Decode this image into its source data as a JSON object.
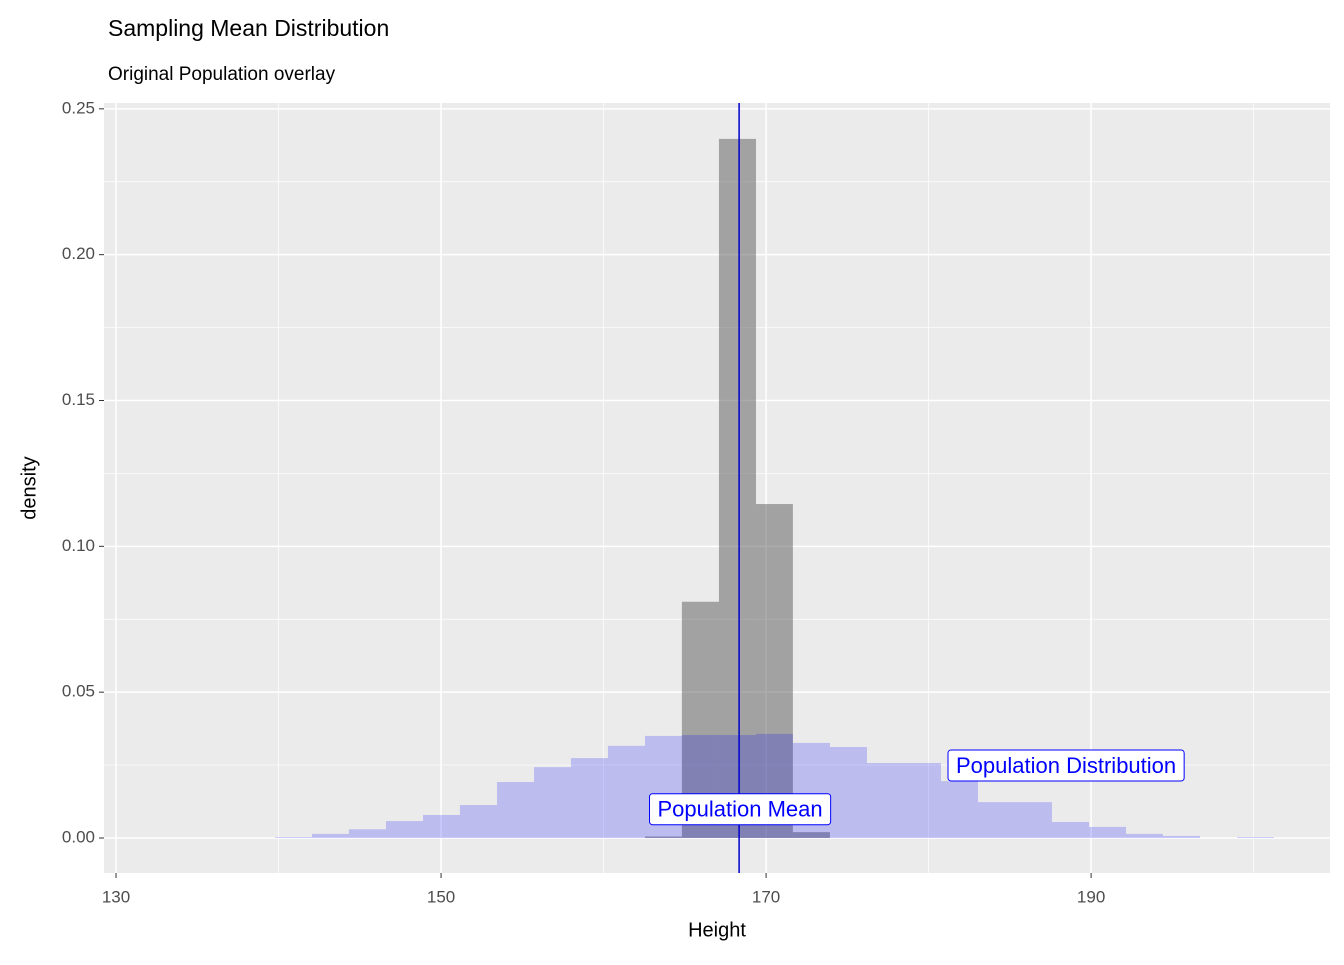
{
  "chart_data": {
    "type": "histogram",
    "title": "Sampling Mean Distribution",
    "subtitle": "Original Population overlay",
    "x_label": "Height",
    "y_label": "density",
    "xlim": [
      129.26,
      204.7
    ],
    "ylim": [
      -0.012,
      0.252
    ],
    "xticks": [
      130,
      150,
      170,
      190
    ],
    "yticks": [
      {
        "value": 0,
        "label": "0.00"
      },
      {
        "value": 0.05,
        "label": "0.05"
      },
      {
        "value": 0.1,
        "label": "0.10"
      },
      {
        "value": 0.15,
        "label": "0.15"
      },
      {
        "value": 0.2,
        "label": "0.20"
      },
      {
        "value": 0.25,
        "label": "0.25"
      }
    ],
    "x_minor_breaks": [
      140,
      160,
      180,
      200
    ],
    "y_minor_breaks": [
      0.025,
      0.075,
      0.125,
      0.175,
      0.225
    ],
    "grid": true,
    "series": [
      {
        "color": "#595959",
        "opacity": 0.5,
        "bins": [
          162.55,
          164.82,
          167.1,
          169.38,
          171.65,
          173.93
        ],
        "values": [
          0.0005,
          0.081,
          0.2397,
          0.1145,
          0.002
        ]
      },
      {
        "color": "#0000ff",
        "opacity": 0.2,
        "bins": [
          139.78,
          142.06,
          144.33,
          146.61,
          148.89,
          151.16,
          153.44,
          155.72,
          157.99,
          160.27,
          162.55,
          164.82,
          167.1,
          169.38,
          171.65,
          173.93,
          176.21,
          178.49,
          180.76,
          183.04,
          185.32,
          187.59,
          189.87,
          192.15,
          194.42,
          196.7,
          198.98,
          201.25
        ],
        "values": [
          0.0003,
          0.0014,
          0.003,
          0.0058,
          0.0079,
          0.0113,
          0.0192,
          0.0243,
          0.0274,
          0.0316,
          0.035,
          0.0353,
          0.0353,
          0.0357,
          0.0326,
          0.0312,
          0.0257,
          0.0257,
          0.0195,
          0.0123,
          0.0123,
          0.0055,
          0.0038,
          0.0014,
          0.0007,
          0,
          0.0003
        ]
      }
    ],
    "vline": {
      "x": 168.34,
      "color": "#0000cd"
    },
    "annotations": [
      {
        "text": "Population Mean",
        "x": 168.4,
        "y": 0.0093,
        "color": "#0000ff"
      },
      {
        "text": "Population Distribution",
        "x": 188.46,
        "y": 0.0243,
        "color": "#0000ff"
      }
    ]
  }
}
